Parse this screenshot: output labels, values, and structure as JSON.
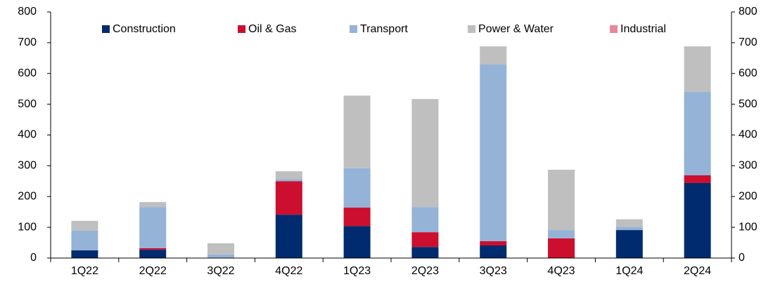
{
  "chart_data": {
    "type": "stacked_bar",
    "categories": [
      "1Q22",
      "2Q22",
      "3Q22",
      "4Q22",
      "1Q23",
      "2Q23",
      "3Q23",
      "4Q23",
      "1Q24",
      "2Q24"
    ],
    "series": [
      {
        "name": "Construction",
        "color": "#002b6e",
        "values": [
          25,
          27,
          0,
          141,
          104,
          36,
          41,
          0,
          91,
          244
        ]
      },
      {
        "name": "Oil & Gas",
        "color": "#cc0f2e",
        "values": [
          0,
          5,
          0,
          109,
          60,
          48,
          14,
          64,
          0,
          25
        ]
      },
      {
        "name": "Transport",
        "color": "#95b3d7",
        "values": [
          64,
          134,
          12,
          7,
          128,
          82,
          574,
          27,
          11,
          271
        ]
      },
      {
        "name": "Power & Water",
        "color": "#bfbfbf",
        "values": [
          32,
          16,
          36,
          25,
          236,
          351,
          59,
          196,
          24,
          148
        ]
      },
      {
        "name": "Industrial",
        "color": "#e6889a",
        "values": [
          0,
          0,
          0,
          0,
          0,
          0,
          0,
          0,
          0,
          0
        ]
      }
    ],
    "ylim": [
      0,
      800
    ],
    "yticks": [
      0,
      100,
      200,
      300,
      400,
      500,
      600,
      700,
      800
    ],
    "y2lim": [
      0,
      800
    ],
    "y2ticks": [
      0,
      100,
      200,
      300,
      400,
      500,
      600,
      700,
      800
    ],
    "legend": "top"
  }
}
